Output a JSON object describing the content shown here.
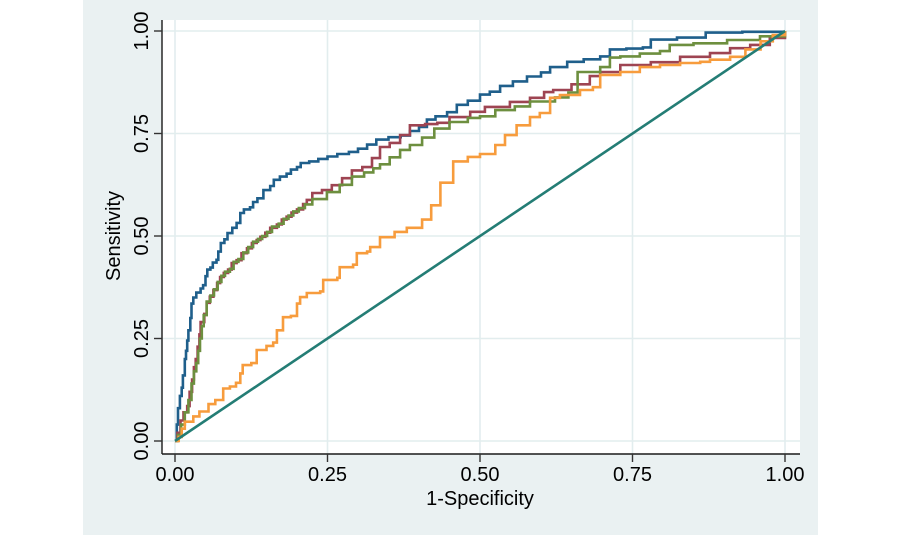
{
  "figure": {
    "canvas_background": "#eaf1f2",
    "plot_background": "#ffffff",
    "gridline_color": "#e2edee",
    "axis_color": "#1a1a1a",
    "tick_color": "#333333"
  },
  "chart_data": {
    "type": "line",
    "subtype": "roc-comparison",
    "title": "",
    "xlabel": "1-Specificity",
    "ylabel": "Sensitivity",
    "xlim": [
      0,
      1
    ],
    "ylim": [
      0,
      1
    ],
    "grid": true,
    "legend": "none",
    "xticks": [
      "0.00",
      "0.25",
      "0.50",
      "0.75",
      "1.00"
    ],
    "yticks": [
      "0.00",
      "0.25",
      "0.50",
      "0.75",
      "1.00"
    ],
    "series": [
      {
        "name": "roc-curve-blue",
        "color": "#1f5f8b",
        "step": true,
        "points": [
          [
            0,
            0
          ],
          [
            0.003,
            0.04
          ],
          [
            0.005,
            0.08
          ],
          [
            0.008,
            0.11
          ],
          [
            0.011,
            0.13
          ],
          [
            0.013,
            0.16
          ],
          [
            0.016,
            0.2
          ],
          [
            0.018,
            0.22
          ],
          [
            0.02,
            0.245
          ],
          [
            0.022,
            0.27
          ],
          [
            0.025,
            0.3
          ],
          [
            0.027,
            0.335
          ],
          [
            0.03,
            0.35
          ],
          [
            0.035,
            0.362
          ],
          [
            0.042,
            0.372
          ],
          [
            0.046,
            0.38
          ],
          [
            0.05,
            0.402
          ],
          [
            0.053,
            0.418
          ],
          [
            0.058,
            0.423
          ],
          [
            0.062,
            0.435
          ],
          [
            0.068,
            0.442
          ],
          [
            0.071,
            0.462
          ],
          [
            0.075,
            0.483
          ],
          [
            0.081,
            0.492
          ],
          [
            0.086,
            0.507
          ],
          [
            0.094,
            0.52
          ],
          [
            0.101,
            0.532
          ],
          [
            0.107,
            0.556
          ],
          [
            0.113,
            0.565
          ],
          [
            0.123,
            0.57
          ],
          [
            0.128,
            0.583
          ],
          [
            0.135,
            0.592
          ],
          [
            0.145,
            0.612
          ],
          [
            0.156,
            0.622
          ],
          [
            0.162,
            0.637
          ],
          [
            0.172,
            0.645
          ],
          [
            0.183,
            0.652
          ],
          [
            0.19,
            0.662
          ],
          [
            0.2,
            0.668
          ],
          [
            0.206,
            0.678
          ],
          [
            0.22,
            0.682
          ],
          [
            0.235,
            0.688
          ],
          [
            0.25,
            0.694
          ],
          [
            0.266,
            0.7
          ],
          [
            0.285,
            0.705
          ],
          [
            0.3,
            0.713
          ],
          [
            0.315,
            0.723
          ],
          [
            0.33,
            0.735
          ],
          [
            0.35,
            0.741
          ],
          [
            0.37,
            0.745
          ],
          [
            0.385,
            0.756
          ],
          [
            0.4,
            0.766
          ],
          [
            0.413,
            0.784
          ],
          [
            0.427,
            0.792
          ],
          [
            0.446,
            0.802
          ],
          [
            0.462,
            0.82
          ],
          [
            0.48,
            0.83
          ],
          [
            0.5,
            0.845
          ],
          [
            0.516,
            0.852
          ],
          [
            0.533,
            0.866
          ],
          [
            0.554,
            0.877
          ],
          [
            0.577,
            0.889
          ],
          [
            0.6,
            0.899
          ],
          [
            0.615,
            0.912
          ],
          [
            0.643,
            0.925
          ],
          [
            0.67,
            0.931
          ],
          [
            0.697,
            0.938
          ],
          [
            0.713,
            0.955
          ],
          [
            0.74,
            0.957
          ],
          [
            0.767,
            0.96
          ],
          [
            0.78,
            0.979
          ],
          [
            0.823,
            0.984
          ],
          [
            0.87,
            0.996
          ],
          [
            0.93,
            0.998
          ],
          [
            1,
            1
          ]
        ]
      },
      {
        "name": "roc-curve-maroon",
        "color": "#9e4452",
        "step": true,
        "points": [
          [
            0,
            0
          ],
          [
            0.004,
            0.02
          ],
          [
            0.009,
            0.05
          ],
          [
            0.014,
            0.07
          ],
          [
            0.02,
            0.085
          ],
          [
            0.024,
            0.12
          ],
          [
            0.028,
            0.15
          ],
          [
            0.031,
            0.18
          ],
          [
            0.034,
            0.2
          ],
          [
            0.037,
            0.23
          ],
          [
            0.04,
            0.26
          ],
          [
            0.042,
            0.29
          ],
          [
            0.048,
            0.31
          ],
          [
            0.052,
            0.337
          ],
          [
            0.057,
            0.352
          ],
          [
            0.063,
            0.368
          ],
          [
            0.069,
            0.385
          ],
          [
            0.074,
            0.4
          ],
          [
            0.08,
            0.41
          ],
          [
            0.087,
            0.418
          ],
          [
            0.093,
            0.434
          ],
          [
            0.101,
            0.441
          ],
          [
            0.109,
            0.458
          ],
          [
            0.118,
            0.47
          ],
          [
            0.126,
            0.483
          ],
          [
            0.134,
            0.49
          ],
          [
            0.14,
            0.498
          ],
          [
            0.148,
            0.508
          ],
          [
            0.156,
            0.52
          ],
          [
            0.167,
            0.528
          ],
          [
            0.175,
            0.54
          ],
          [
            0.183,
            0.547
          ],
          [
            0.191,
            0.557
          ],
          [
            0.2,
            0.565
          ],
          [
            0.21,
            0.578
          ],
          [
            0.216,
            0.588
          ],
          [
            0.225,
            0.605
          ],
          [
            0.241,
            0.612
          ],
          [
            0.257,
            0.624
          ],
          [
            0.274,
            0.641
          ],
          [
            0.29,
            0.66
          ],
          [
            0.307,
            0.668
          ],
          [
            0.323,
            0.69
          ],
          [
            0.336,
            0.717
          ],
          [
            0.352,
            0.727
          ],
          [
            0.369,
            0.746
          ],
          [
            0.385,
            0.77
          ],
          [
            0.41,
            0.773
          ],
          [
            0.43,
            0.776
          ],
          [
            0.45,
            0.79
          ],
          [
            0.484,
            0.803
          ],
          [
            0.508,
            0.815
          ],
          [
            0.549,
            0.827
          ],
          [
            0.582,
            0.837
          ],
          [
            0.605,
            0.851
          ],
          [
            0.62,
            0.856
          ],
          [
            0.65,
            0.87
          ],
          [
            0.68,
            0.89
          ],
          [
            0.697,
            0.9
          ],
          [
            0.73,
            0.917
          ],
          [
            0.78,
            0.924
          ],
          [
            0.828,
            0.937
          ],
          [
            0.877,
            0.946
          ],
          [
            0.91,
            0.958
          ],
          [
            0.943,
            0.966
          ],
          [
            0.975,
            0.983
          ],
          [
            1,
            1
          ]
        ]
      },
      {
        "name": "roc-curve-green",
        "color": "#6d8f3f",
        "step": true,
        "points": [
          [
            0,
            0
          ],
          [
            0.005,
            0.015
          ],
          [
            0.01,
            0.04
          ],
          [
            0.016,
            0.07
          ],
          [
            0.022,
            0.1
          ],
          [
            0.027,
            0.14
          ],
          [
            0.031,
            0.17
          ],
          [
            0.035,
            0.19
          ],
          [
            0.038,
            0.22
          ],
          [
            0.041,
            0.25
          ],
          [
            0.044,
            0.28
          ],
          [
            0.047,
            0.307
          ],
          [
            0.052,
            0.34
          ],
          [
            0.058,
            0.355
          ],
          [
            0.064,
            0.37
          ],
          [
            0.07,
            0.388
          ],
          [
            0.076,
            0.403
          ],
          [
            0.082,
            0.413
          ],
          [
            0.09,
            0.42
          ],
          [
            0.096,
            0.437
          ],
          [
            0.104,
            0.444
          ],
          [
            0.112,
            0.46
          ],
          [
            0.12,
            0.473
          ],
          [
            0.128,
            0.486
          ],
          [
            0.136,
            0.493
          ],
          [
            0.143,
            0.5
          ],
          [
            0.151,
            0.51
          ],
          [
            0.159,
            0.523
          ],
          [
            0.17,
            0.53
          ],
          [
            0.178,
            0.542
          ],
          [
            0.186,
            0.55
          ],
          [
            0.194,
            0.56
          ],
          [
            0.203,
            0.568
          ],
          [
            0.213,
            0.577
          ],
          [
            0.225,
            0.59
          ],
          [
            0.249,
            0.607
          ],
          [
            0.27,
            0.625
          ],
          [
            0.29,
            0.645
          ],
          [
            0.31,
            0.655
          ],
          [
            0.325,
            0.665
          ],
          [
            0.336,
            0.675
          ],
          [
            0.352,
            0.692
          ],
          [
            0.369,
            0.71
          ],
          [
            0.385,
            0.722
          ],
          [
            0.405,
            0.74
          ],
          [
            0.425,
            0.762
          ],
          [
            0.45,
            0.778
          ],
          [
            0.48,
            0.788
          ],
          [
            0.5,
            0.792
          ],
          [
            0.525,
            0.807
          ],
          [
            0.557,
            0.816
          ],
          [
            0.582,
            0.828
          ],
          [
            0.623,
            0.838
          ],
          [
            0.645,
            0.85
          ],
          [
            0.66,
            0.9
          ],
          [
            0.697,
            0.912
          ],
          [
            0.713,
            0.935
          ],
          [
            0.73,
            0.938
          ],
          [
            0.762,
            0.945
          ],
          [
            0.795,
            0.951
          ],
          [
            0.811,
            0.966
          ],
          [
            0.85,
            0.97
          ],
          [
            0.905,
            0.978
          ],
          [
            0.959,
            0.987
          ],
          [
            1,
            1
          ]
        ]
      },
      {
        "name": "roc-curve-orange",
        "color": "#f79c3d",
        "step": true,
        "points": [
          [
            0,
            0
          ],
          [
            0.006,
            0.01
          ],
          [
            0.011,
            0.03
          ],
          [
            0.016,
            0.047
          ],
          [
            0.03,
            0.06
          ],
          [
            0.04,
            0.072
          ],
          [
            0.055,
            0.09
          ],
          [
            0.066,
            0.1
          ],
          [
            0.079,
            0.128
          ],
          [
            0.09,
            0.133
          ],
          [
            0.1,
            0.142
          ],
          [
            0.107,
            0.165
          ],
          [
            0.111,
            0.185
          ],
          [
            0.125,
            0.19
          ],
          [
            0.134,
            0.222
          ],
          [
            0.15,
            0.232
          ],
          [
            0.161,
            0.24
          ],
          [
            0.167,
            0.27
          ],
          [
            0.177,
            0.302
          ],
          [
            0.19,
            0.305
          ],
          [
            0.2,
            0.335
          ],
          [
            0.205,
            0.351
          ],
          [
            0.216,
            0.361
          ],
          [
            0.238,
            0.365
          ],
          [
            0.243,
            0.393
          ],
          [
            0.266,
            0.398
          ],
          [
            0.27,
            0.424
          ],
          [
            0.292,
            0.43
          ],
          [
            0.298,
            0.458
          ],
          [
            0.315,
            0.462
          ],
          [
            0.32,
            0.473
          ],
          [
            0.336,
            0.497
          ],
          [
            0.36,
            0.51
          ],
          [
            0.38,
            0.52
          ],
          [
            0.405,
            0.54
          ],
          [
            0.42,
            0.575
          ],
          [
            0.435,
            0.63
          ],
          [
            0.456,
            0.682
          ],
          [
            0.48,
            0.693
          ],
          [
            0.5,
            0.7
          ],
          [
            0.525,
            0.722
          ],
          [
            0.541,
            0.746
          ],
          [
            0.56,
            0.77
          ],
          [
            0.582,
            0.79
          ],
          [
            0.598,
            0.8
          ],
          [
            0.615,
            0.837
          ],
          [
            0.631,
            0.844
          ],
          [
            0.664,
            0.856
          ],
          [
            0.685,
            0.863
          ],
          [
            0.697,
            0.893
          ],
          [
            0.73,
            0.9
          ],
          [
            0.762,
            0.912
          ],
          [
            0.795,
            0.917
          ],
          [
            0.828,
            0.922
          ],
          [
            0.861,
            0.925
          ],
          [
            0.877,
            0.93
          ],
          [
            0.91,
            0.937
          ],
          [
            0.935,
            0.955
          ],
          [
            0.96,
            0.975
          ],
          [
            0.98,
            0.99
          ],
          [
            1,
            1
          ]
        ]
      },
      {
        "name": "reference-diagonal",
        "color": "#247d75",
        "step": false,
        "points": [
          [
            0,
            0
          ],
          [
            1,
            1
          ]
        ]
      }
    ]
  }
}
